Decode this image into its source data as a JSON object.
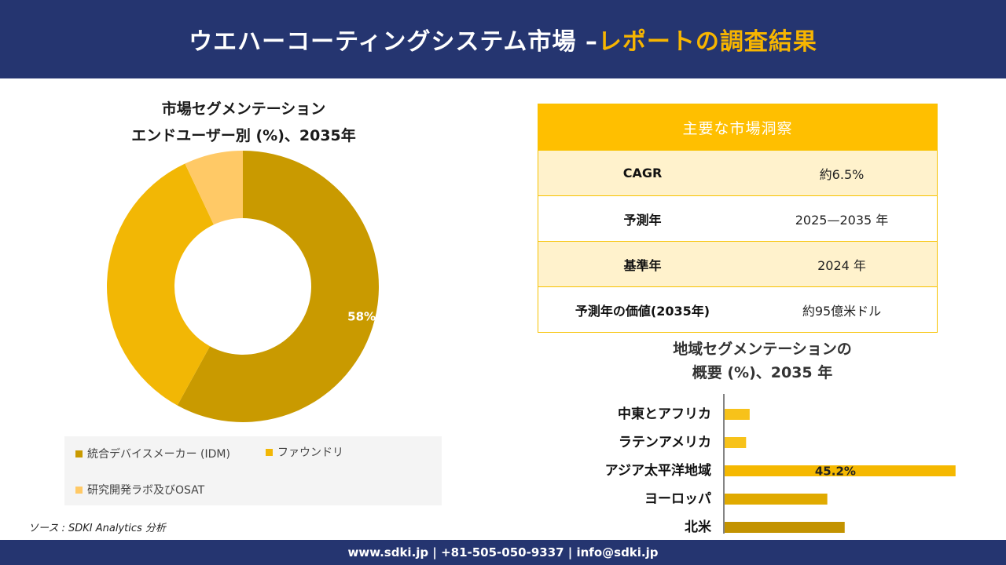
{
  "header": {
    "title_main": "ウエハーコーティングシステム市場 –",
    "title_highlight": "レポートの調査結果"
  },
  "donut": {
    "title_line1": "市場セグメンテーション",
    "title_line2": "エンドユーザー別 (%)、2035年"
  },
  "insights": {
    "header": "主要な市場洞察",
    "rows": [
      {
        "label": "CAGR",
        "value": "約6.5%"
      },
      {
        "label": "予測年",
        "value": "2025—2035 年"
      },
      {
        "label": "基準年",
        "value": "2024 年"
      },
      {
        "label": "予測年の価値(2035年)",
        "value": "約95億米ドル"
      }
    ]
  },
  "bars": {
    "title_line1": "地域セグメンテーションの",
    "title_line2": "概要 (%)、2035 年"
  },
  "source": "ソース : SDKI Analytics 分析",
  "footer": "www.sdki.jp | +81-505-050-9337 | info@sdki.jp",
  "chart_data": [
    {
      "type": "pie",
      "title": "市場セグメンテーション エンドユーザー別 (%)、2035年",
      "categories": [
        "統合デバイスメーカー (IDM)",
        "ファウンドリ",
        "研究開発ラボ及びOSAT"
      ],
      "values": [
        58,
        35,
        7
      ],
      "data_labels": [
        "58%",
        "",
        ""
      ],
      "colors": [
        "#c99a00",
        "#f2b705",
        "#ffc966"
      ],
      "legend": "bottom"
    },
    {
      "type": "bar",
      "orientation": "horizontal",
      "title": "地域セグメンテーションの 概要 (%)、2035 年",
      "categories": [
        "中東とアフリカ",
        "ラテンアメリカ",
        "アジア太平洋地域",
        "ヨーロッパ",
        "北米"
      ],
      "values": [
        4.9,
        4.2,
        45.2,
        20.1,
        23.5
      ],
      "data_labels": [
        "",
        "",
        "45.2%",
        "",
        ""
      ],
      "colors": [
        "#f7c21a",
        "#f7c21a",
        "#f5b800",
        "#e0aa00",
        "#c39300"
      ],
      "xlim": [
        0,
        50
      ]
    }
  ]
}
